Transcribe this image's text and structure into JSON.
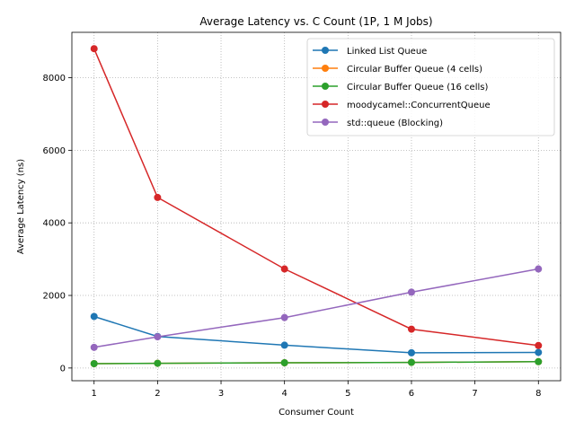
{
  "chart_data": {
    "type": "line",
    "title": "Average Latency vs. C Count (1P, 1 M Jobs)",
    "xlabel": "Consumer Count",
    "ylabel": "Average Latency (ns)",
    "x": [
      1,
      2,
      4,
      6,
      8
    ],
    "xlim": [
      0.65,
      8.35
    ],
    "ylim": [
      -350,
      9250
    ],
    "xticks": [
      1,
      2,
      3,
      4,
      5,
      6,
      7,
      8
    ],
    "yticks": [
      0,
      2000,
      4000,
      6000,
      8000
    ],
    "grid": true,
    "legend_position": "top-right",
    "series": [
      {
        "name": "Linked List Queue",
        "color": "#1f77b4",
        "values": [
          1420,
          870,
          630,
          420,
          430
        ]
      },
      {
        "name": "Circular Buffer Queue (4 cells)",
        "color": "#ff7f0e",
        "values": [
          120,
          130,
          145,
          155,
          175
        ]
      },
      {
        "name": "Circular Buffer Queue (16 cells)",
        "color": "#2ca02c",
        "values": [
          120,
          130,
          145,
          155,
          175
        ]
      },
      {
        "name": "moodycamel::ConcurrentQueue",
        "color": "#d62728",
        "values": [
          8800,
          4700,
          2730,
          1070,
          620
        ]
      },
      {
        "name": "std::queue (Blocking)",
        "color": "#9467bd",
        "values": [
          570,
          860,
          1390,
          2090,
          2730
        ]
      }
    ]
  }
}
